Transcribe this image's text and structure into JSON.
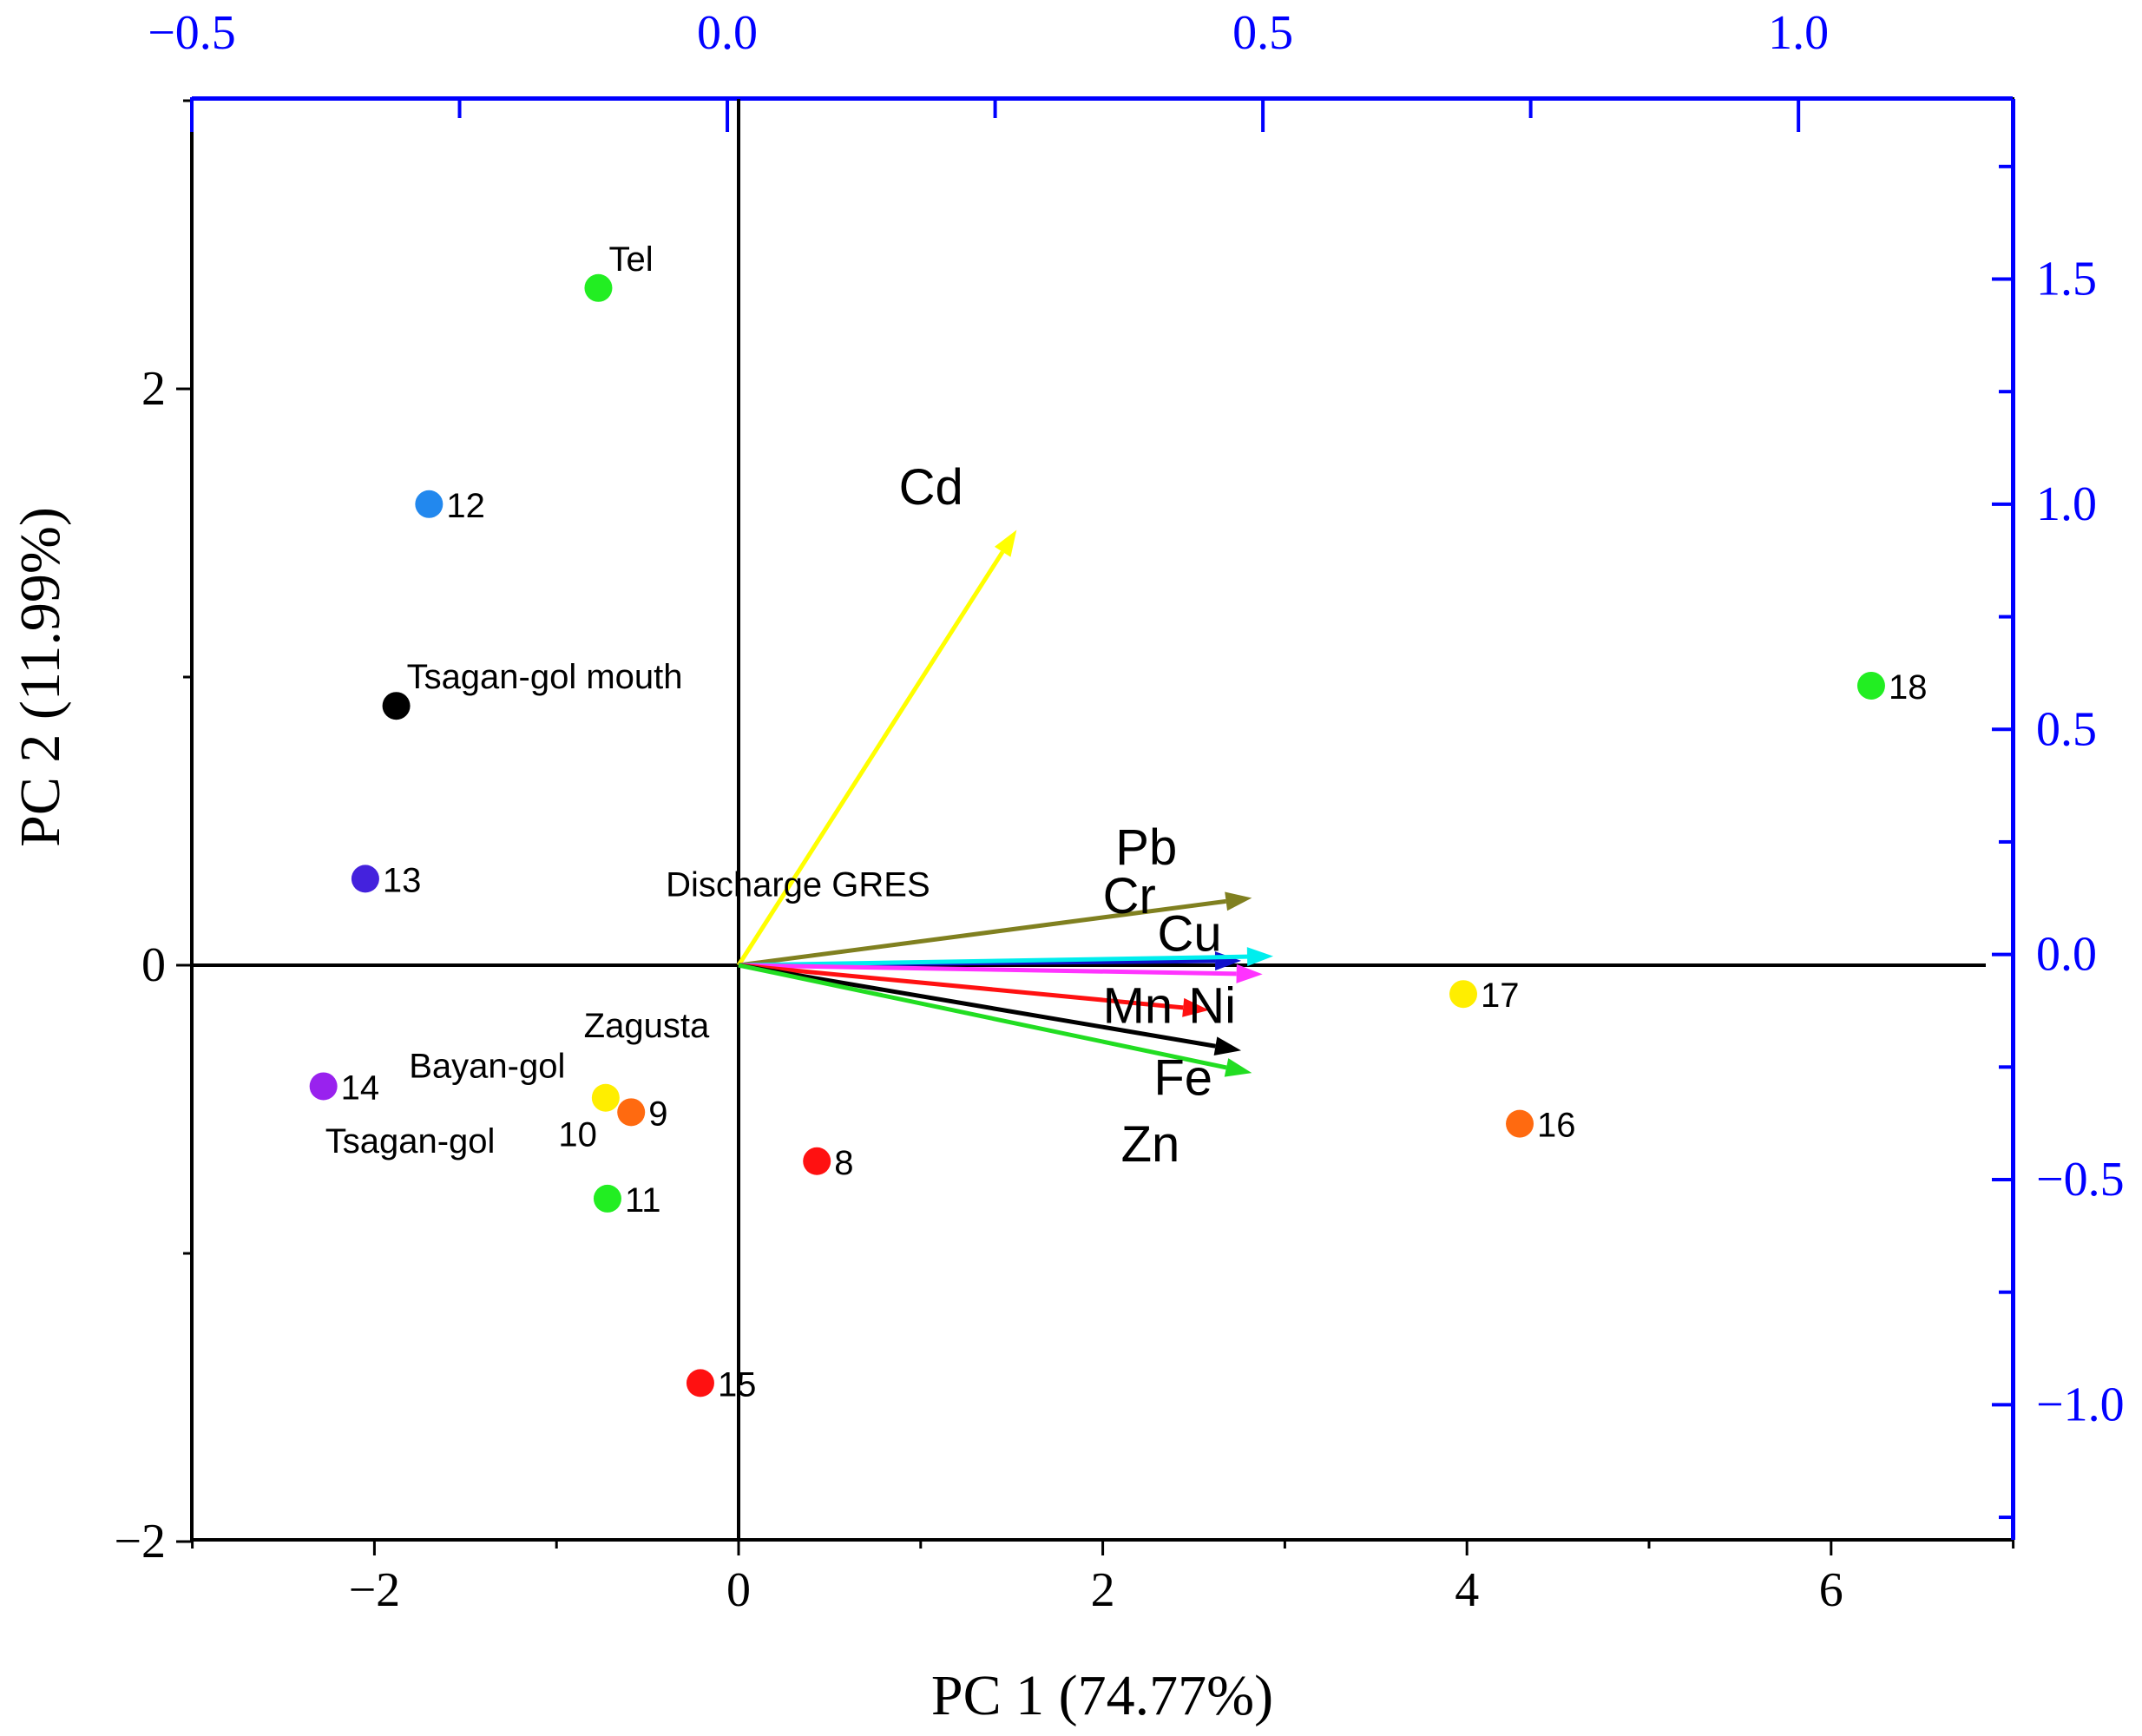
{
  "chart_data": {
    "type": "scatter",
    "subtype": "biplot",
    "xlabel": "PC 1 (74.77%)",
    "ylabel": "PC 2 (11.99%)",
    "xlim": [
      -3,
      7
    ],
    "ylim": [
      -2,
      3
    ],
    "x_ticks": [
      -2,
      0,
      2,
      4,
      6
    ],
    "y_ticks": [
      -2,
      0,
      2
    ],
    "top_axis": {
      "lim": [
        -0.5,
        1.2
      ],
      "ticks": [
        "−0.5",
        "0.0",
        "0.5",
        "1.0"
      ],
      "tick_values": [
        -0.5,
        0,
        0.5,
        1.0
      ],
      "color": "#0000ff"
    },
    "right_axis": {
      "lim": [
        -1.3,
        1.9
      ],
      "ticks": [
        "1.5",
        "1.0",
        "0.5",
        "0.0",
        "−0.5",
        "−1.0"
      ],
      "tick_values": [
        1.5,
        1.0,
        0.5,
        0.0,
        -0.5,
        -1.0
      ],
      "color": "#0000ff"
    },
    "points": [
      {
        "label": "Tel",
        "x": -0.77,
        "y": 2.35,
        "color": "#22ee22",
        "label_pos": "above-right"
      },
      {
        "label": "12",
        "x": -1.7,
        "y": 1.6,
        "color": "#2288ee",
        "label_pos": "right"
      },
      {
        "label": "Tsagan-gol mouth",
        "x": -1.88,
        "y": 0.9,
        "color": "#000000",
        "label_pos": "above-right"
      },
      {
        "label": "13",
        "x": -2.05,
        "y": 0.3,
        "color": "#4422dd",
        "label_pos": "right"
      },
      {
        "label": "14",
        "x": -2.28,
        "y": -0.42,
        "color": "#9922ee",
        "label_pos": "right"
      },
      {
        "label": "10",
        "x": -0.73,
        "y": -0.46,
        "color": "#ffee00",
        "label_pos": "below-left"
      },
      {
        "label": "9",
        "x": -0.59,
        "y": -0.51,
        "color": "#ff6a10",
        "label_pos": "right"
      },
      {
        "label": "11",
        "x": -0.72,
        "y": -0.81,
        "color": "#22ee22",
        "label_pos": "right"
      },
      {
        "label": "8",
        "x": 0.43,
        "y": -0.68,
        "color": "#ff1111",
        "label_pos": "right"
      },
      {
        "label": "15",
        "x": -0.21,
        "y": -1.45,
        "color": "#ff1111",
        "label_pos": "right"
      },
      {
        "label": "17",
        "x": 3.98,
        "y": -0.1,
        "color": "#ffee00",
        "label_pos": "right"
      },
      {
        "label": "16",
        "x": 4.29,
        "y": -0.55,
        "color": "#ff6a10",
        "label_pos": "right"
      },
      {
        "label": "18",
        "x": 6.22,
        "y": 0.97,
        "color": "#22ee22",
        "label_pos": "right"
      }
    ],
    "annotations": [
      {
        "text": "Discharge GRES",
        "x": -0.4,
        "y": 0.24
      },
      {
        "text": "Zagusta",
        "x": -0.85,
        "y": -0.25
      },
      {
        "text": "Bayan-gol",
        "x": -1.81,
        "y": -0.39
      },
      {
        "text": "Tsagan-gol",
        "x": -2.27,
        "y": -0.65
      }
    ],
    "loadings": [
      {
        "variable": "Cd",
        "x": 0.26,
        "y": 0.97,
        "color": "#ffff00"
      },
      {
        "variable": "Pb",
        "x": 0.48,
        "y": 0.15,
        "color": "#808020"
      },
      {
        "variable": "Cr",
        "x": 0.47,
        "y": 0.01,
        "color": "#1111cc"
      },
      {
        "variable": "Cu",
        "x": 0.5,
        "y": 0.02,
        "color": "#00eeee"
      },
      {
        "variable": "Ni",
        "x": 0.49,
        "y": -0.02,
        "color": "#ff33ff"
      },
      {
        "variable": "Mn",
        "x": 0.44,
        "y": -0.1,
        "color": "#ff1111"
      },
      {
        "variable": "Fe",
        "x": 0.47,
        "y": -0.19,
        "color": "#000000"
      },
      {
        "variable": "Zn",
        "x": 0.48,
        "y": -0.24,
        "color": "#22dd22"
      }
    ],
    "loading_labels": [
      {
        "text": "Cd",
        "x": 0.88,
        "y": 1.6
      },
      {
        "text": "Pb",
        "x": 2.07,
        "y": 0.35
      },
      {
        "text": "Cr",
        "x": 2.0,
        "y": 0.18
      },
      {
        "text": "Cu",
        "x": 2.3,
        "y": 0.05
      },
      {
        "text": "Mn",
        "x": 2.0,
        "y": -0.2
      },
      {
        "text": "Ni",
        "x": 2.47,
        "y": -0.2
      },
      {
        "text": "Fe",
        "x": 2.28,
        "y": -0.45
      },
      {
        "text": "Zn",
        "x": 2.1,
        "y": -0.68
      }
    ]
  }
}
